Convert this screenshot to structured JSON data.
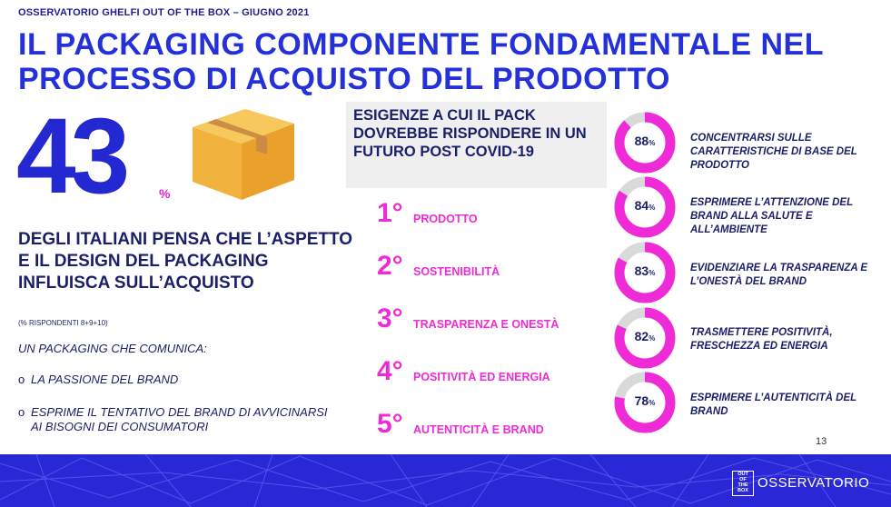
{
  "header": {
    "kicker": "OSSERVATORIO GHELFI OUT OF THE BOX – GIUGNO 2021",
    "title": "IL PACKAGING COMPONENTE FONDAMENTALE NEL PROCESSO DI ACQUISTO DEL PRODOTTO"
  },
  "left": {
    "big_number": "43",
    "percent_sign": "%",
    "statement": "DEGLI ITALIANI PENSA CHE L’ASPETTO E IL DESIGN DEL PACKAGING INFLUISCA SULL’ACQUISTO",
    "note": "(% RISPONDENTI 8+9+10)",
    "intro": "UN PACKAGING CHE COMUNICA:",
    "bullets": [
      {
        "marker": "o",
        "text": "LA PASSIONE DEL BRAND"
      },
      {
        "marker": "o",
        "text": "ESPRIME IL TENTATIVO DEL BRAND DI AVVICINARSI AI BISOGNI DEI CONSUMATORI"
      }
    ]
  },
  "needs": {
    "title": "ESIGENZE A CUI IL PACK DOVREBBE RISPONDERE IN UN FUTURO POST COVID-19",
    "ranking": [
      {
        "rank": "1°",
        "label": "PRODOTTO"
      },
      {
        "rank": "2°",
        "label": "SOSTENIBILITÀ"
      },
      {
        "rank": "3°",
        "label": "TRASPARENZA E ONESTÀ"
      },
      {
        "rank": "4°",
        "label": "POSITIVITÀ ED ENERGIA"
      },
      {
        "rank": "5°",
        "label": "AUTENTICITÀ E BRAND"
      }
    ]
  },
  "donuts": [
    {
      "value": "88",
      "unit": "%",
      "fraction": 0.88,
      "desc": "CONCENTRARSI SULLE CARATTERISTICHE DI BASE DEL PRODOTTO"
    },
    {
      "value": "84",
      "unit": "%",
      "fraction": 0.84,
      "desc": "ESPRIMERE L’ATTENZIONE DEL BRAND ALLA SALUTE E ALL’AMBIENTE"
    },
    {
      "value": "83",
      "unit": "%",
      "fraction": 0.83,
      "desc": "EVIDENZIARE LA TRASPARENZA E L’ONESTÀ DEL BRAND"
    },
    {
      "value": "82",
      "unit": "%",
      "fraction": 0.82,
      "desc": "TRASMETTERE POSITIVITÀ, FRESCHEZZA ED ENERGIA"
    },
    {
      "value": "78",
      "unit": "%",
      "fraction": 0.78,
      "desc": "ESPRIMERE L’AUTENTICITÀ DEL BRAND"
    }
  ],
  "colors": {
    "title_blue": "#2430d8",
    "navy": "#1a1f6a",
    "magenta": "#ef2bd7",
    "donut_track": "#d9d9d9",
    "footer_blue": "#2a28d6"
  },
  "page_number": "13",
  "footer": {
    "logo_mark": [
      "OUT",
      "OF",
      "THE",
      "BOX"
    ],
    "logo_word": "OSSERVATORIO"
  }
}
